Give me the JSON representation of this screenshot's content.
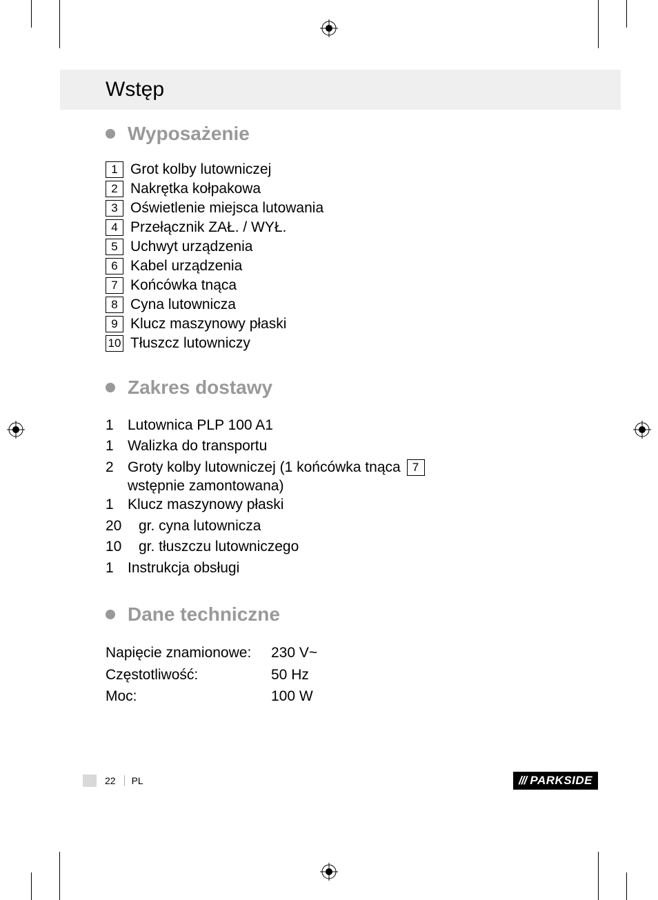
{
  "page": {
    "title": "Wstęp",
    "number": "22",
    "lang": "PL"
  },
  "brand": {
    "slashes": "///",
    "name": "PARKSIDE"
  },
  "sections": {
    "equipment": {
      "heading": "Wyposażenie",
      "items": [
        {
          "num": "1",
          "label": "Grot kolby lutowniczej"
        },
        {
          "num": "2",
          "label": "Nakrętka kołpakowa"
        },
        {
          "num": "3",
          "label": "Oświetlenie miejsca lutowania"
        },
        {
          "num": "4",
          "label": "Przełącznik ZAŁ. / WYŁ."
        },
        {
          "num": "5",
          "label": "Uchwyt urządzenia"
        },
        {
          "num": "6",
          "label": "Kabel urządzenia"
        },
        {
          "num": "7",
          "label": "Końcówka tnąca"
        },
        {
          "num": "8",
          "label": "Cyna lutownicza"
        },
        {
          "num": "9",
          "label": "Klucz maszynowy płaski"
        },
        {
          "num": "10",
          "label": "Tłuszcz lutowniczy"
        }
      ]
    },
    "delivery": {
      "heading": "Zakres dostawy",
      "items": [
        {
          "qty": "1",
          "label": "Lutownica PLP 100 A1"
        },
        {
          "qty": "1",
          "label": "Walizka do transportu"
        },
        {
          "qty": "2",
          "label_pre": "Groty kolby lutowniczej (1 końcówka tnąca ",
          "ref": "7",
          "label_post": "",
          "continued": "wstępnie zamontowana)"
        },
        {
          "qty": "1",
          "label": "Klucz maszynowy płaski"
        },
        {
          "qty": "20",
          "label": "gr. cyna lutownicza",
          "wide": true
        },
        {
          "qty": "10",
          "label": "gr. tłuszczu lutowniczego",
          "wide": true
        },
        {
          "qty": "1",
          "label": "Instrukcja obsługi"
        }
      ]
    },
    "tech": {
      "heading": "Dane techniczne",
      "rows": [
        {
          "label": "Napięcie znamionowe:",
          "value": "230 V~"
        },
        {
          "label": "Częstotliwość:",
          "value": "50 Hz"
        },
        {
          "label": "Moc:",
          "value": "100 W"
        }
      ]
    }
  },
  "colors": {
    "heading_grey": "#999999",
    "title_bg": "#efefef",
    "text": "#000000",
    "footer_grey": "#d9d9d9"
  }
}
